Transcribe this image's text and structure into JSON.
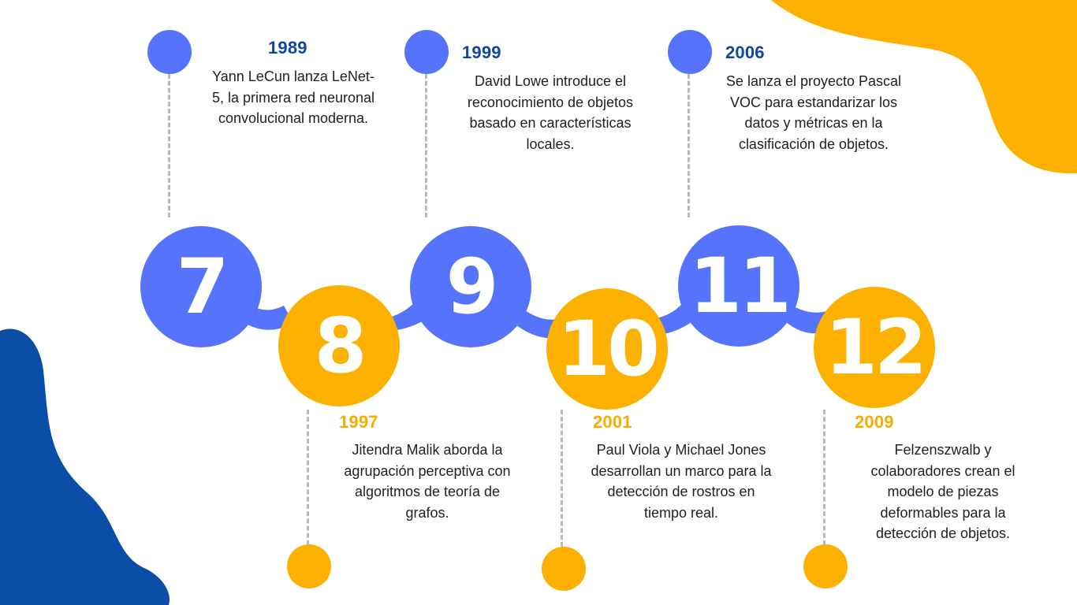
{
  "colors": {
    "blue": "#5573fb",
    "gold": "#fcb000",
    "navy": "#0d47a1",
    "dash": "#b9b9b9"
  },
  "milestones": [
    {
      "number": "7",
      "year": "1989",
      "description": "Yann LeCun lanza LeNet-5, la primera red neuronal convolucional moderna."
    },
    {
      "number": "8",
      "year": "1997",
      "description": "Jitendra Malik aborda la agrupación perceptiva con algoritmos de teoría de grafos."
    },
    {
      "number": "9",
      "year": "1999",
      "description": "David Lowe introduce el reconocimiento de objetos basado en características locales."
    },
    {
      "number": "10",
      "year": "2001",
      "description": "Paul Viola y Michael Jones desarrollan un marco para la detección de rostros en tiempo real."
    },
    {
      "number": "11",
      "year": "2006",
      "description": "Se lanza el proyecto Pascal VOC para estandarizar los datos y métricas en la clasificación de objetos."
    },
    {
      "number": "12",
      "year": "2009",
      "description": "Felzenszwalb y colaboradores crean el modelo de piezas deformables para la detección de objetos."
    }
  ]
}
